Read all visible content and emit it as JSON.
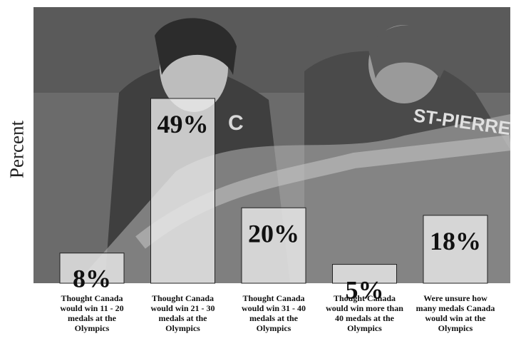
{
  "chart_data": {
    "type": "bar",
    "ylabel": "Percent",
    "categories": [
      "Thought Canada would win 11 - 20 medals at the Olympics",
      "Thought Canada would win 21 - 30 medals at the Olympics",
      "Thought Canada would win 31 - 40 medals at the Olympics",
      "Thought Canada would win more than 40 medals at the Olympics",
      "Were unsure how many medals Canada would win at the Olympics"
    ],
    "values": [
      8,
      49,
      20,
      5,
      18
    ],
    "value_labels": [
      "8%",
      "49%",
      "20%",
      "5%",
      "18%"
    ],
    "ylim": [
      0,
      49
    ],
    "grid": false,
    "legend": "none",
    "colors": {
      "bar_fill": "#e8e8e8",
      "bar_stroke": "#222222",
      "background_photo": "#6a6a6a"
    }
  }
}
